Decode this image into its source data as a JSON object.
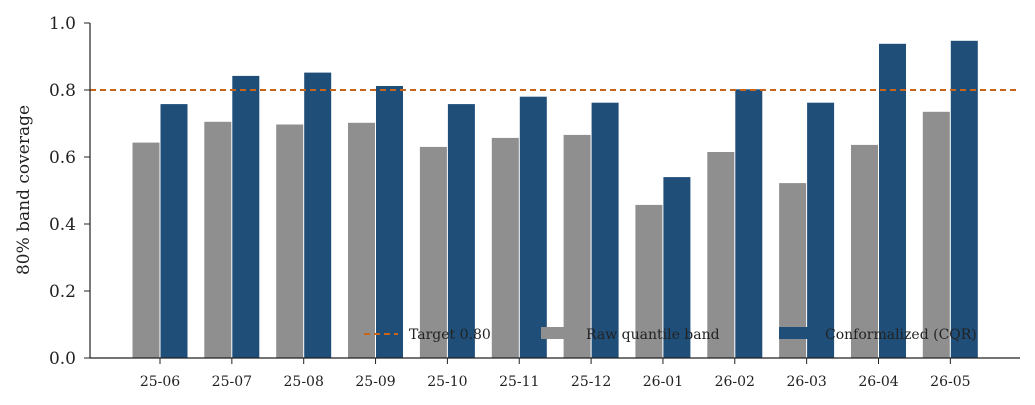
{
  "chart_data": {
    "type": "bar",
    "title": "",
    "xlabel": "",
    "ylabel": "80% band coverage",
    "ylim": [
      0,
      1.0
    ],
    "yticks": [
      "0.0",
      "0.2",
      "0.4",
      "0.6",
      "0.8",
      "1.0"
    ],
    "grid": false,
    "legend_position": "bottom-right",
    "categories": [
      "25-06",
      "25-07",
      "25-08",
      "25-09",
      "25-10",
      "25-11",
      "25-12",
      "26-01",
      "26-02",
      "26-03",
      "26-04",
      "26-05"
    ],
    "series": [
      {
        "name": "Raw quantile band",
        "color": "#8f8f8f",
        "values": [
          0.643,
          0.705,
          0.697,
          0.702,
          0.63,
          0.657,
          0.666,
          0.457,
          0.615,
          0.522,
          0.636,
          0.735
        ]
      },
      {
        "name": "Conformalized (CQR)",
        "color": "#1f4e79",
        "values": [
          0.758,
          0.842,
          0.852,
          0.812,
          0.758,
          0.78,
          0.762,
          0.54,
          0.802,
          0.762,
          0.938,
          0.947
        ]
      }
    ],
    "reference_line": {
      "label": "Target 0.80",
      "value": 0.8,
      "color": "#c8651b",
      "style": "dashed"
    }
  }
}
